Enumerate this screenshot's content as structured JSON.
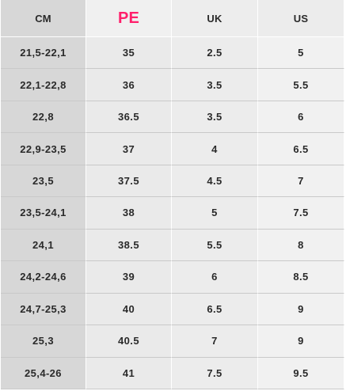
{
  "table": {
    "headers": [
      "CM",
      "PE",
      "UK",
      "US"
    ],
    "highlight_color": "#ff1f6b",
    "rows": [
      [
        "21,5-22,1",
        "35",
        "2.5",
        "5"
      ],
      [
        "22,1-22,8",
        "36",
        "3.5",
        "5.5"
      ],
      [
        "22,8",
        "36.5",
        "3.5",
        "6"
      ],
      [
        "22,9-23,5",
        "37",
        "4",
        "6.5"
      ],
      [
        "23,5",
        "37.5",
        "4.5",
        "7"
      ],
      [
        "23,5-24,1",
        "38",
        "5",
        "7.5"
      ],
      [
        "24,1",
        "38.5",
        "5.5",
        "8"
      ],
      [
        "24,2-24,6",
        "39",
        "6",
        "8.5"
      ],
      [
        "24,7-25,3",
        "40",
        "6.5",
        "9"
      ],
      [
        "25,3",
        "40.5",
        "7",
        "9"
      ],
      [
        "25,4-26",
        "41",
        "7.5",
        "9.5"
      ]
    ]
  }
}
